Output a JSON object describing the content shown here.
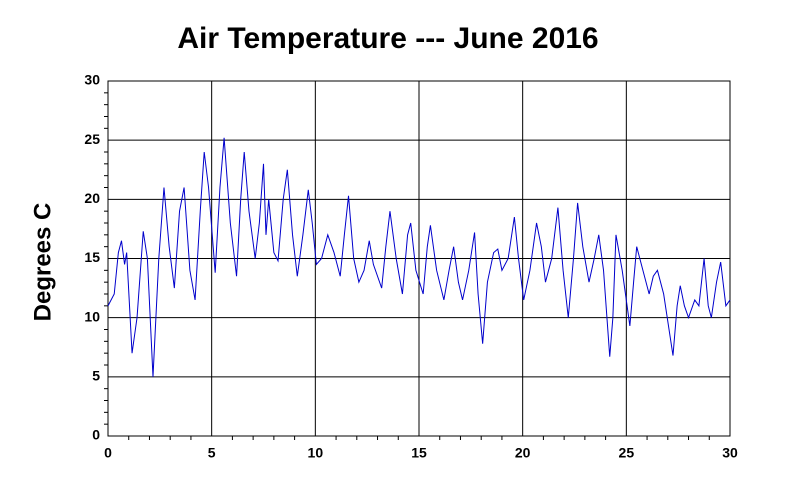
{
  "chart_data": {
    "type": "line",
    "title": "Air Temperature --- June 2016",
    "ylabel": "Degrees C",
    "x": [
      0,
      0.3,
      0.5,
      0.65,
      0.8,
      0.9,
      1.16,
      1.4,
      1.7,
      1.9,
      2.17,
      2.45,
      2.7,
      2.95,
      3.2,
      3.45,
      3.67,
      3.95,
      4.2,
      4.45,
      4.64,
      4.85,
      5.17,
      5.4,
      5.6,
      5.9,
      6.2,
      6.4,
      6.57,
      6.8,
      7.1,
      7.3,
      7.5,
      7.62,
      7.75,
      8.0,
      8.2,
      8.45,
      8.65,
      8.9,
      9.13,
      9.4,
      9.66,
      9.85,
      10.05,
      10.3,
      10.6,
      10.9,
      11.2,
      11.4,
      11.6,
      11.85,
      12.1,
      12.35,
      12.6,
      12.8,
      13.2,
      13.4,
      13.6,
      13.9,
      14.2,
      14.45,
      14.6,
      14.85,
      15.2,
      15.4,
      15.55,
      15.85,
      16.2,
      16.45,
      16.67,
      16.9,
      17.1,
      17.4,
      17.68,
      17.85,
      18.07,
      18.3,
      18.6,
      18.8,
      19.0,
      19.3,
      19.6,
      19.8,
      20.05,
      20.35,
      20.67,
      20.9,
      21.1,
      21.4,
      21.7,
      21.95,
      22.2,
      22.45,
      22.65,
      22.9,
      23.2,
      23.45,
      23.67,
      23.9,
      24.2,
      24.35,
      24.5,
      24.8,
      25.17,
      25.35,
      25.5,
      25.8,
      26.1,
      26.3,
      26.5,
      26.8,
      27.25,
      27.45,
      27.6,
      27.8,
      28.0,
      28.3,
      28.5,
      28.75,
      28.95,
      29.1,
      29.35,
      29.55,
      29.8,
      30
    ],
    "series": [
      {
        "color": "#0000cc",
        "values": [
          11,
          12,
          15.5,
          16.5,
          14.5,
          15.5,
          7,
          10,
          17.3,
          15,
          5,
          15,
          21,
          16,
          12.5,
          19,
          21,
          14,
          11.5,
          19,
          24,
          21,
          13.8,
          21,
          25.2,
          18,
          13.5,
          20,
          24,
          19,
          15,
          18,
          23,
          17,
          20,
          15.5,
          14.8,
          20,
          22.5,
          17,
          13.5,
          17,
          20.8,
          18,
          14.5,
          15,
          17,
          15.5,
          13.5,
          17,
          20.3,
          15,
          13,
          14,
          16.5,
          14.5,
          12.5,
          16,
          19,
          15,
          12,
          17,
          18,
          14,
          12,
          16,
          17.8,
          14,
          11.5,
          14,
          16,
          13,
          11.5,
          14,
          17.2,
          12,
          7.8,
          13,
          15.5,
          15.8,
          14,
          15,
          18.5,
          15,
          11.5,
          14,
          18,
          16,
          13,
          15,
          19.3,
          14,
          10,
          15,
          19.7,
          16,
          13,
          15,
          17,
          14,
          6.7,
          10,
          17,
          14,
          9.3,
          13,
          16,
          14,
          12,
          13.5,
          14,
          12,
          6.8,
          11,
          12.7,
          11,
          10,
          11.5,
          11,
          15,
          11,
          10,
          13,
          14.7,
          11,
          11.5
        ]
      }
    ],
    "xlim": [
      0,
      30
    ],
    "ylim": [
      0,
      30
    ],
    "xticks": [
      0,
      5,
      10,
      15,
      20,
      25,
      30
    ],
    "yticks": [
      0,
      5,
      10,
      15,
      20,
      25,
      30
    ],
    "grid": true
  }
}
